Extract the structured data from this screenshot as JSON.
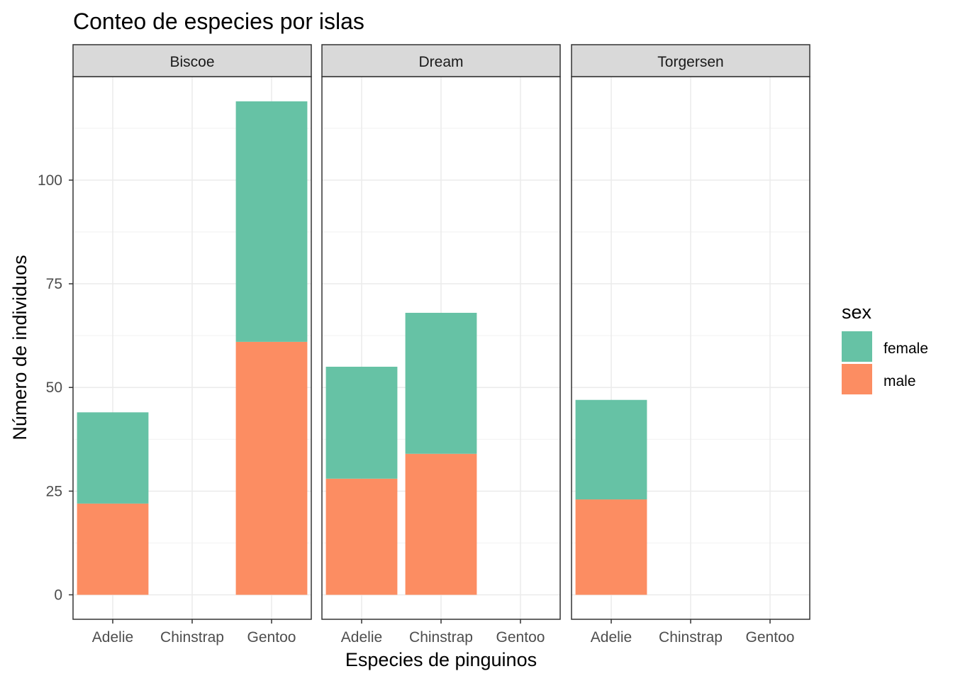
{
  "chart_data": {
    "type": "bar",
    "stacked": true,
    "title": "Conteo de especies por islas",
    "xlabel": "Especies de pinguinos",
    "ylabel": "Número de individuos",
    "ylim": [
      -6,
      125
    ],
    "yticks": [
      0,
      25,
      50,
      75,
      100
    ],
    "categories": [
      "Adelie",
      "Chinstrap",
      "Gentoo"
    ],
    "grid": true,
    "legend": {
      "title": "sex",
      "position": "right",
      "entries": [
        {
          "name": "female",
          "color": "#66C2A5"
        },
        {
          "name": "male",
          "color": "#FC8D62"
        }
      ]
    },
    "facets": [
      {
        "name": "Biscoe",
        "series": [
          {
            "name": "male",
            "values": [
              22,
              0,
              61
            ]
          },
          {
            "name": "female",
            "values": [
              22,
              0,
              58
            ]
          }
        ]
      },
      {
        "name": "Dream",
        "series": [
          {
            "name": "male",
            "values": [
              28,
              34,
              0
            ]
          },
          {
            "name": "female",
            "values": [
              27,
              34,
              0
            ]
          }
        ]
      },
      {
        "name": "Torgersen",
        "series": [
          {
            "name": "male",
            "values": [
              23,
              0,
              0
            ]
          },
          {
            "name": "female",
            "values": [
              24,
              0,
              0
            ]
          }
        ]
      }
    ]
  }
}
